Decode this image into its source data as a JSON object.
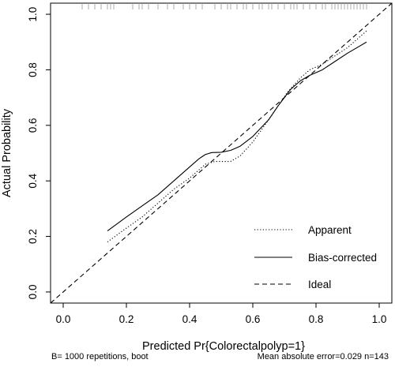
{
  "chart_data": {
    "type": "line",
    "xlabel": "Predicted Pr{Colorectalpolyp=1}",
    "ylabel": "Actual Probability",
    "xlim": [
      -0.04,
      1.04
    ],
    "ylim": [
      -0.04,
      1.04
    ],
    "x_ticks": [
      "0.0",
      "0.2",
      "0.4",
      "0.6",
      "0.8",
      "1.0"
    ],
    "y_ticks": [
      "0.0",
      "0.2",
      "0.4",
      "0.6",
      "0.8",
      "1.0"
    ],
    "grid": false,
    "legend_position": "bottom-right",
    "series": [
      {
        "name": "Apparent",
        "line_style": "dotted",
        "x": [
          0.14,
          0.2,
          0.25,
          0.3,
          0.35,
          0.4,
          0.45,
          0.48,
          0.5,
          0.53,
          0.56,
          0.6,
          0.65,
          0.68,
          0.71,
          0.75,
          0.78,
          0.82,
          0.86,
          0.9,
          0.93,
          0.96
        ],
        "y": [
          0.18,
          0.23,
          0.27,
          0.32,
          0.37,
          0.41,
          0.46,
          0.47,
          0.47,
          0.47,
          0.49,
          0.54,
          0.62,
          0.67,
          0.72,
          0.77,
          0.8,
          0.82,
          0.85,
          0.88,
          0.91,
          0.94
        ]
      },
      {
        "name": "Bias-corrected",
        "line_style": "solid",
        "x": [
          0.14,
          0.2,
          0.25,
          0.3,
          0.35,
          0.4,
          0.43,
          0.45,
          0.47,
          0.5,
          0.53,
          0.56,
          0.6,
          0.65,
          0.68,
          0.72,
          0.75,
          0.78,
          0.82,
          0.86,
          0.9,
          0.93,
          0.96
        ],
        "y": [
          0.22,
          0.27,
          0.31,
          0.35,
          0.4,
          0.45,
          0.48,
          0.495,
          0.502,
          0.503,
          0.51,
          0.525,
          0.56,
          0.62,
          0.67,
          0.73,
          0.76,
          0.78,
          0.8,
          0.83,
          0.86,
          0.88,
          0.9
        ]
      },
      {
        "name": "Ideal",
        "line_style": "dashed",
        "x": [
          -0.04,
          1.04
        ],
        "y": [
          -0.04,
          1.04
        ]
      }
    ],
    "rug_x": [
      0.06,
      0.08,
      0.1,
      0.12,
      0.14,
      0.15,
      0.16,
      0.22,
      0.24,
      0.25,
      0.27,
      0.3,
      0.33,
      0.35,
      0.38,
      0.4,
      0.42,
      0.44,
      0.48,
      0.5,
      0.52,
      0.53,
      0.55,
      0.57,
      0.58,
      0.6,
      0.62,
      0.63,
      0.65,
      0.66,
      0.68,
      0.7,
      0.72,
      0.73,
      0.74,
      0.76,
      0.78,
      0.8,
      0.82,
      0.83,
      0.85,
      0.86,
      0.87,
      0.88,
      0.89,
      0.9,
      0.91,
      0.92,
      0.93,
      0.94,
      0.95,
      0.96
    ],
    "footnote_left": "B= 1000 repetitions, boot",
    "footnote_right": "Mean absolute error=0.029 n=143"
  }
}
